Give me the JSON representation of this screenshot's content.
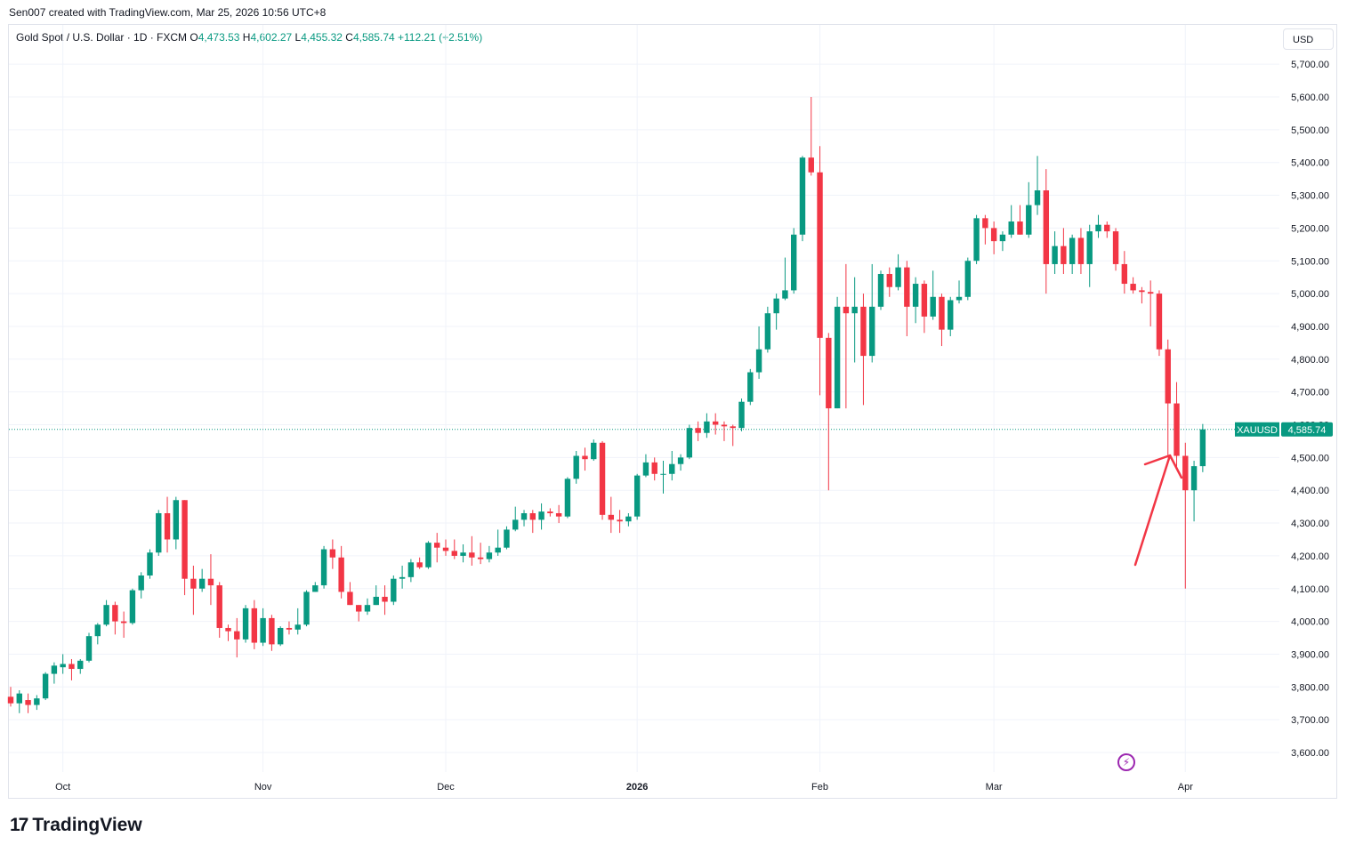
{
  "header": {
    "creator_line": "Sen007 created with TradingView.com, Mar 25, 2026 10:56 UTC+8",
    "instrument": "Gold Spot / U.S. Dollar · 1D · FXCM",
    "o_label": "O",
    "o_value": "4,473.53",
    "h_label": "H",
    "h_value": "4,602.27",
    "l_label": "L",
    "l_value": "4,455.32",
    "c_label": "C",
    "c_value": "4,585.74",
    "change": "+112.21 (+2.51%)"
  },
  "currency_button": "USD",
  "price_tag": {
    "symbol": "XAUUSD",
    "value": "4,585.74",
    "price": 4585.74
  },
  "brand": "TradingView",
  "colors": {
    "up": "#089981",
    "down": "#f23645",
    "grid": "#f0f3fa",
    "axis_text": "#131722",
    "arrow": "#f23645",
    "accent": "#9c27b0"
  },
  "icons": {
    "bolt": "lightning-icon",
    "logo": "tradingview-logo-icon"
  },
  "chart_data": {
    "type": "candlestick",
    "title": "Gold Spot / U.S. Dollar · 1D · FXCM",
    "ylim": [
      3550,
      5780
    ],
    "y_ticks": [
      3600,
      3700,
      3800,
      3900,
      4000,
      4100,
      4200,
      4300,
      4400,
      4500,
      4600,
      4700,
      4800,
      4900,
      5000,
      5100,
      5200,
      5300,
      5400,
      5500,
      5600,
      5700
    ],
    "y_tick_labels": [
      "3,600.00",
      "3,700.00",
      "3,800.00",
      "3,900.00",
      "4,000.00",
      "4,100.00",
      "4,200.00",
      "4,300.00",
      "4,400.00",
      "4,500.00",
      "4,600.00",
      "4,700.00",
      "4,800.00",
      "4,900.00",
      "5,000.00",
      "5,100.00",
      "5,200.00",
      "5,300.00",
      "5,400.00",
      "5,500.00",
      "5,600.00",
      "5,700.00"
    ],
    "x_ticks": [
      {
        "label": "Oct",
        "index": 6,
        "bold": false
      },
      {
        "label": "Nov",
        "index": 29,
        "bold": false
      },
      {
        "label": "Dec",
        "index": 50,
        "bold": false
      },
      {
        "label": "2026",
        "index": 72,
        "bold": true
      },
      {
        "label": "Feb",
        "index": 93,
        "bold": false
      },
      {
        "label": "Mar",
        "index": 113,
        "bold": false
      },
      {
        "label": "Apr",
        "index": 135,
        "bold": false
      }
    ],
    "candles": [
      [
        3770,
        3800,
        3740,
        3750
      ],
      [
        3750,
        3790,
        3720,
        3780
      ],
      [
        3760,
        3780,
        3720,
        3745
      ],
      [
        3745,
        3775,
        3730,
        3765
      ],
      [
        3765,
        3845,
        3760,
        3840
      ],
      [
        3840,
        3875,
        3810,
        3865
      ],
      [
        3860,
        3900,
        3840,
        3870
      ],
      [
        3870,
        3885,
        3820,
        3855
      ],
      [
        3855,
        3885,
        3840,
        3880
      ],
      [
        3880,
        3965,
        3875,
        3955
      ],
      [
        3955,
        3995,
        3930,
        3990
      ],
      [
        3990,
        4065,
        3985,
        4050
      ],
      [
        4050,
        4060,
        3960,
        4000
      ],
      [
        4000,
        4030,
        3950,
        3995
      ],
      [
        3995,
        4100,
        3990,
        4095
      ],
      [
        4095,
        4150,
        4070,
        4140
      ],
      [
        4140,
        4220,
        4130,
        4210
      ],
      [
        4210,
        4340,
        4200,
        4330
      ],
      [
        4330,
        4380,
        4210,
        4250
      ],
      [
        4250,
        4380,
        4220,
        4370
      ],
      [
        4370,
        4370,
        4080,
        4130
      ],
      [
        4130,
        4170,
        4020,
        4100
      ],
      [
        4100,
        4160,
        4090,
        4130
      ],
      [
        4130,
        4205,
        4050,
        4110
      ],
      [
        4110,
        4120,
        3950,
        3980
      ],
      [
        3980,
        3990,
        3940,
        3970
      ],
      [
        3970,
        4010,
        3890,
        3945
      ],
      [
        3945,
        4050,
        3935,
        4040
      ],
      [
        4040,
        4065,
        3915,
        3935
      ],
      [
        3935,
        4040,
        3925,
        4010
      ],
      [
        4010,
        4020,
        3910,
        3930
      ],
      [
        3930,
        3985,
        3925,
        3980
      ],
      [
        3980,
        4000,
        3960,
        3975
      ],
      [
        3975,
        4040,
        3960,
        3990
      ],
      [
        3990,
        4095,
        3985,
        4090
      ],
      [
        4090,
        4120,
        4090,
        4110
      ],
      [
        4110,
        4230,
        4100,
        4220
      ],
      [
        4220,
        4250,
        4160,
        4195
      ],
      [
        4195,
        4230,
        4070,
        4090
      ],
      [
        4090,
        4120,
        4050,
        4050
      ],
      [
        4050,
        4050,
        4000,
        4030
      ],
      [
        4030,
        4070,
        4020,
        4050
      ],
      [
        4050,
        4110,
        4050,
        4075
      ],
      [
        4075,
        4110,
        4020,
        4060
      ],
      [
        4060,
        4140,
        4050,
        4130
      ],
      [
        4130,
        4170,
        4100,
        4135
      ],
      [
        4135,
        4190,
        4120,
        4180
      ],
      [
        4180,
        4195,
        4160,
        4165
      ],
      [
        4165,
        4245,
        4160,
        4240
      ],
      [
        4240,
        4270,
        4180,
        4225
      ],
      [
        4225,
        4250,
        4200,
        4215
      ],
      [
        4215,
        4250,
        4190,
        4200
      ],
      [
        4200,
        4235,
        4180,
        4210
      ],
      [
        4210,
        4260,
        4170,
        4195
      ],
      [
        4195,
        4240,
        4175,
        4190
      ],
      [
        4190,
        4230,
        4180,
        4210
      ],
      [
        4210,
        4280,
        4200,
        4225
      ],
      [
        4225,
        4290,
        4220,
        4280
      ],
      [
        4280,
        4350,
        4275,
        4310
      ],
      [
        4310,
        4340,
        4290,
        4330
      ],
      [
        4330,
        4340,
        4270,
        4310
      ],
      [
        4310,
        4360,
        4280,
        4335
      ],
      [
        4335,
        4345,
        4320,
        4330
      ],
      [
        4330,
        4355,
        4300,
        4320
      ],
      [
        4320,
        4440,
        4315,
        4435
      ],
      [
        4435,
        4520,
        4420,
        4505
      ],
      [
        4505,
        4530,
        4460,
        4495
      ],
      [
        4495,
        4555,
        4490,
        4545
      ],
      [
        4545,
        4550,
        4310,
        4325
      ],
      [
        4325,
        4380,
        4270,
        4310
      ],
      [
        4310,
        4340,
        4270,
        4305
      ],
      [
        4305,
        4330,
        4290,
        4320
      ],
      [
        4320,
        4450,
        4310,
        4445
      ],
      [
        4445,
        4510,
        4440,
        4485
      ],
      [
        4485,
        4500,
        4430,
        4450
      ],
      [
        4450,
        4490,
        4390,
        4450
      ],
      [
        4450,
        4520,
        4430,
        4480
      ],
      [
        4480,
        4510,
        4460,
        4500
      ],
      [
        4500,
        4600,
        4495,
        4590
      ],
      [
        4590,
        4610,
        4550,
        4575
      ],
      [
        4575,
        4635,
        4560,
        4610
      ],
      [
        4610,
        4635,
        4570,
        4600
      ],
      [
        4600,
        4610,
        4550,
        4595
      ],
      [
        4595,
        4600,
        4535,
        4590
      ],
      [
        4590,
        4680,
        4580,
        4670
      ],
      [
        4670,
        4770,
        4660,
        4760
      ],
      [
        4760,
        4900,
        4740,
        4830
      ],
      [
        4830,
        4960,
        4820,
        4940
      ],
      [
        4940,
        5000,
        4890,
        4985
      ],
      [
        4985,
        5110,
        4980,
        5010
      ],
      [
        5010,
        5200,
        5000,
        5180
      ],
      [
        5180,
        5420,
        5160,
        5415
      ],
      [
        5415,
        5600,
        5360,
        5370
      ],
      [
        5370,
        5450,
        4690,
        4865
      ],
      [
        4865,
        4880,
        4400,
        4650
      ],
      [
        4650,
        4990,
        4650,
        4960
      ],
      [
        4960,
        5090,
        4650,
        4940
      ],
      [
        4940,
        5050,
        4790,
        4960
      ],
      [
        4960,
        5000,
        4660,
        4810
      ],
      [
        4810,
        5090,
        4790,
        4960
      ],
      [
        4960,
        5070,
        4950,
        5060
      ],
      [
        5060,
        5080,
        4990,
        5020
      ],
      [
        5020,
        5120,
        5010,
        5080
      ],
      [
        5080,
        5100,
        4870,
        4960
      ],
      [
        4960,
        5050,
        4910,
        5030
      ],
      [
        5030,
        5040,
        4880,
        4930
      ],
      [
        4930,
        5070,
        4920,
        4990
      ],
      [
        4990,
        5000,
        4840,
        4890
      ],
      [
        4890,
        4990,
        4870,
        4980
      ],
      [
        4980,
        5040,
        4970,
        4990
      ],
      [
        4990,
        5110,
        4980,
        5100
      ],
      [
        5100,
        5240,
        5090,
        5230
      ],
      [
        5230,
        5240,
        5150,
        5200
      ],
      [
        5200,
        5220,
        5120,
        5160
      ],
      [
        5160,
        5190,
        5130,
        5180
      ],
      [
        5180,
        5270,
        5170,
        5220
      ],
      [
        5220,
        5270,
        5180,
        5180
      ],
      [
        5180,
        5340,
        5170,
        5270
      ],
      [
        5270,
        5420,
        5240,
        5315
      ],
      [
        5315,
        5380,
        5000,
        5090
      ],
      [
        5090,
        5190,
        5060,
        5145
      ],
      [
        5145,
        5200,
        5060,
        5090
      ],
      [
        5090,
        5180,
        5060,
        5170
      ],
      [
        5170,
        5200,
        5060,
        5090
      ],
      [
        5090,
        5210,
        5020,
        5190
      ],
      [
        5190,
        5240,
        5170,
        5210
      ],
      [
        5210,
        5220,
        5170,
        5190
      ],
      [
        5190,
        5200,
        5070,
        5090
      ],
      [
        5090,
        5130,
        5000,
        5030
      ],
      [
        5030,
        5050,
        5000,
        5010
      ],
      [
        5010,
        5020,
        4970,
        5005
      ],
      [
        5005,
        5040,
        4900,
        5000
      ],
      [
        5000,
        5010,
        4810,
        4830
      ],
      [
        4830,
        4860,
        4500,
        4665
      ],
      [
        4665,
        4730,
        4470,
        4505
      ],
      [
        4505,
        4545,
        4100,
        4400
      ],
      [
        4400,
        4490,
        4305,
        4473.53
      ],
      [
        4473.53,
        4602.27,
        4455.32,
        4585.74
      ]
    ]
  }
}
